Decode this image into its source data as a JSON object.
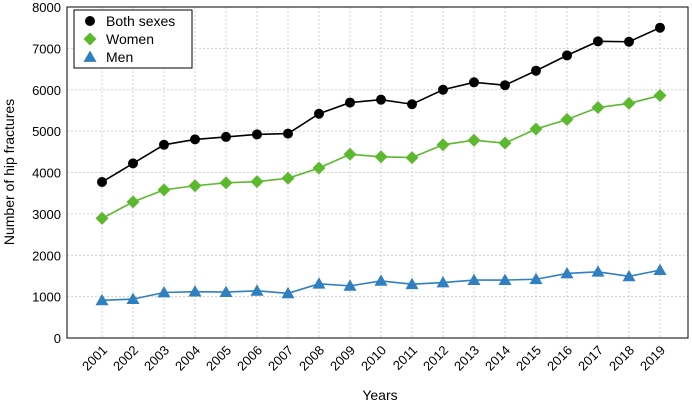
{
  "chart_data": {
    "type": "line",
    "title": "",
    "xlabel": "Years",
    "ylabel": "Number of hip fractures",
    "ylim": [
      0,
      8000
    ],
    "yticks": [
      0,
      1000,
      2000,
      3000,
      4000,
      5000,
      6000,
      7000,
      8000
    ],
    "grid": true,
    "legend_position": "top-left",
    "categories": [
      "2001",
      "2002",
      "2003",
      "2004",
      "2005",
      "2006",
      "2007",
      "2008",
      "2009",
      "2010",
      "2011",
      "2012",
      "2013",
      "2014",
      "2015",
      "2016",
      "2017",
      "2018",
      "2019"
    ],
    "series": [
      {
        "name": "Both sexes",
        "color": "#000000",
        "marker": "circle",
        "values": [
          3770,
          4220,
          4670,
          4800,
          4860,
          4920,
          4940,
          5420,
          5690,
          5760,
          5650,
          6000,
          6180,
          6110,
          6460,
          6830,
          7170,
          7160,
          7500
        ]
      },
      {
        "name": "Women",
        "color": "#5cb82f",
        "marker": "diamond",
        "values": [
          2890,
          3290,
          3580,
          3680,
          3750,
          3780,
          3860,
          4110,
          4440,
          4380,
          4360,
          4670,
          4780,
          4710,
          5050,
          5280,
          5570,
          5670,
          5860
        ]
      },
      {
        "name": "Men",
        "color": "#2f7fc1",
        "marker": "triangle",
        "values": [
          910,
          940,
          1100,
          1120,
          1110,
          1140,
          1080,
          1310,
          1260,
          1380,
          1300,
          1340,
          1400,
          1400,
          1420,
          1560,
          1600,
          1490,
          1640
        ]
      }
    ]
  }
}
